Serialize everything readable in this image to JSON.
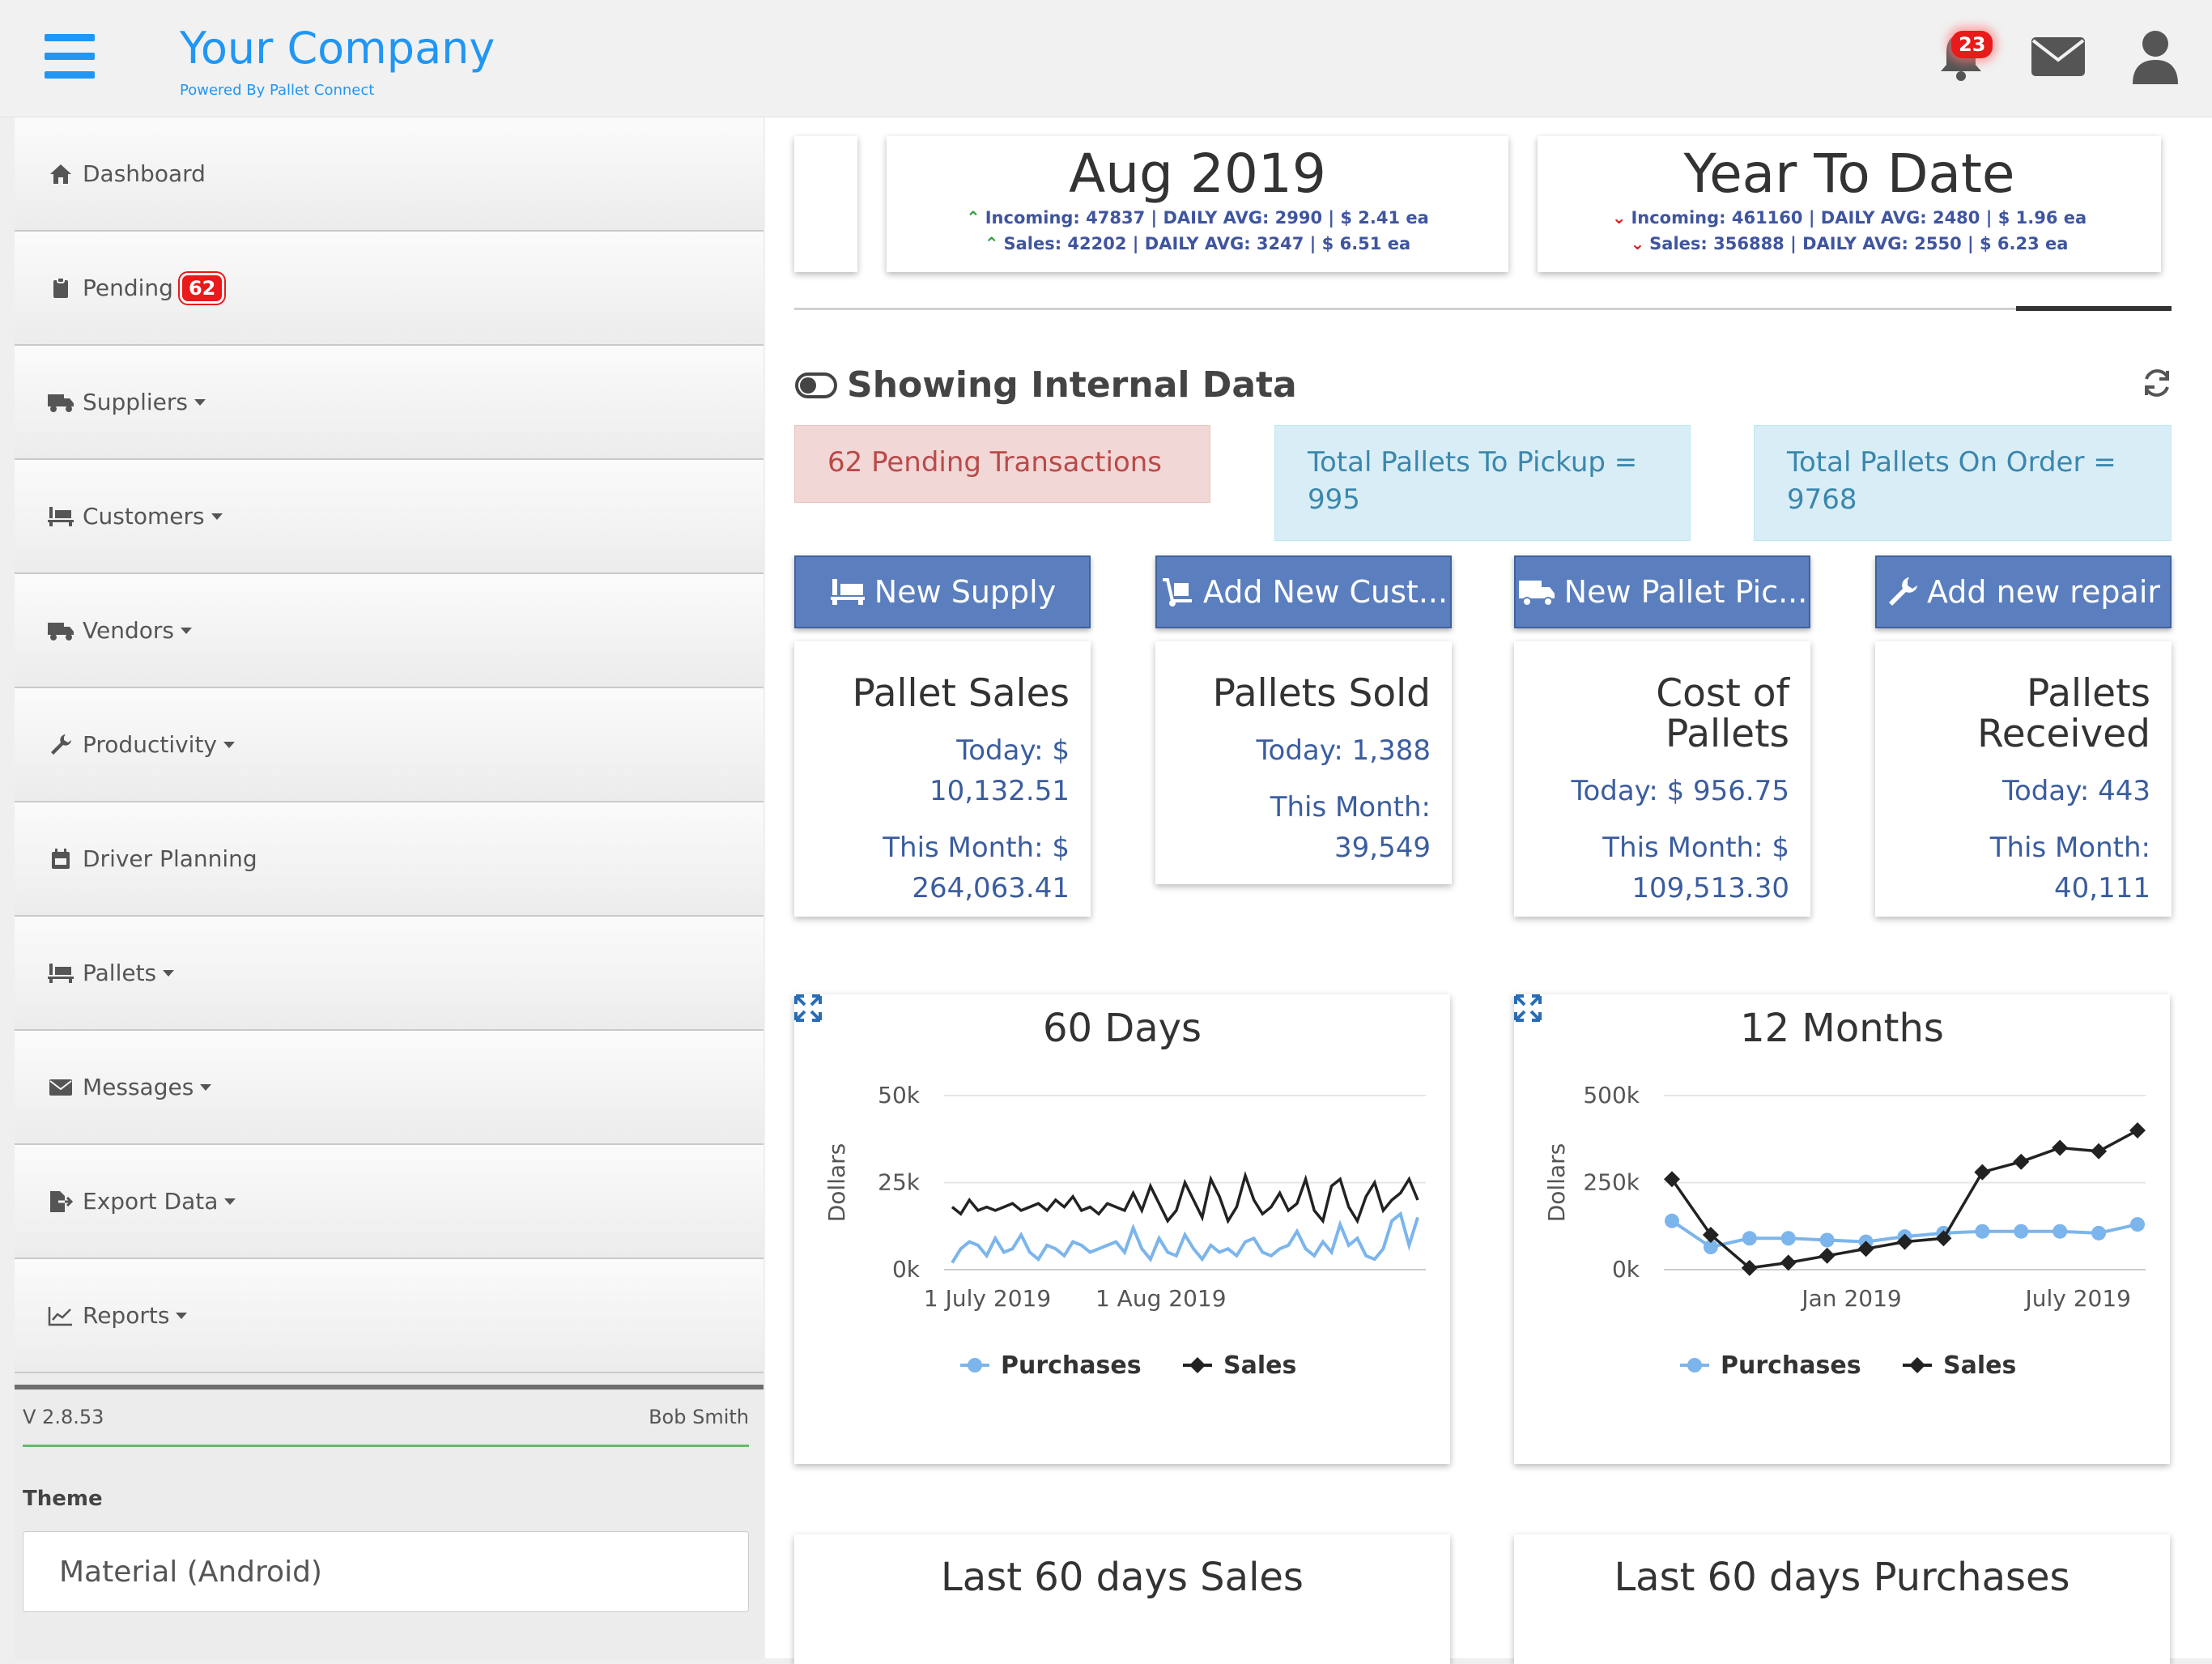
{
  "header": {
    "company": "Your Company",
    "powered_by": "Powered By Pallet Connect",
    "notif_count": "23"
  },
  "sidebar": {
    "items": [
      {
        "label": "Dashboard",
        "icon": "home-icon"
      },
      {
        "label": "Pending",
        "icon": "clipboard-icon",
        "badge": "62"
      },
      {
        "label": "Suppliers",
        "icon": "truck-icon",
        "caret": true
      },
      {
        "label": "Customers",
        "icon": "pallet-icon",
        "caret": true
      },
      {
        "label": "Vendors",
        "icon": "truck-icon",
        "caret": true
      },
      {
        "label": "Productivity",
        "icon": "wrench-icon",
        "caret": true
      },
      {
        "label": "Driver Planning",
        "icon": "calendar-icon"
      },
      {
        "label": "Pallets",
        "icon": "pallet-icon",
        "caret": true
      },
      {
        "label": "Messages",
        "icon": "envelope-icon",
        "caret": true
      },
      {
        "label": "Export Data",
        "icon": "export-icon",
        "caret": true
      },
      {
        "label": "Reports",
        "icon": "chart-icon",
        "caret": true
      }
    ],
    "version": "V 2.8.53",
    "user": "Bob Smith",
    "theme_label": "Theme",
    "theme_value": "Material (Android)"
  },
  "summary": {
    "month": {
      "title": "Aug 2019",
      "incoming": "Incoming: 47837 | DAILY AVG: 2990 | $ 2.41 ea",
      "sales": "Sales: 42202 | DAILY AVG: 3247 | $ 6.51 ea"
    },
    "ytd": {
      "title": "Year To Date",
      "incoming": "Incoming: 461160 | DAILY AVG: 2480 | $ 1.96 ea",
      "sales": "Sales: 356888 | DAILY AVG: 2550 | $ 6.23 ea"
    }
  },
  "showing": "Showing Internal Data",
  "alerts": {
    "pending": "62 Pending Transactions",
    "pickup": "Total Pallets To Pickup = 995",
    "order": "Total Pallets On Order = 9768"
  },
  "buttons": {
    "new_supply": "New Supply",
    "add_customer": "Add New Cust...",
    "new_pickup": "New Pallet Pic...",
    "add_repair": "Add new repair"
  },
  "stats": [
    {
      "title": "Pallet Sales",
      "today": "Today: $ 10,132.51",
      "month": "This Month: $ 264,063.41"
    },
    {
      "title": "Pallets Sold",
      "today": "Today: 1,388",
      "month": "This Month: 39,549"
    },
    {
      "title": "Cost of Pallets",
      "today": "Today: $ 956.75",
      "month": "This Month: $ 109,513.30"
    },
    {
      "title": "Pallets Received",
      "today": "Today: 443",
      "month": "This Month: 40,111"
    }
  ],
  "colors": {
    "purchases": "#7cb5ec",
    "sales": "#222222",
    "accent": "#2196f3",
    "button": "#5b7fbe"
  },
  "chart_data": [
    {
      "type": "line",
      "title": "60 Days",
      "ylabel": "Dollars",
      "xlabel": "",
      "x_ticks": [
        "1 July 2019",
        "1 Aug 2019"
      ],
      "y_ticks": [
        "0k",
        "25k",
        "50k"
      ],
      "ylim": [
        0,
        50000
      ],
      "legend": "bottom",
      "series": [
        {
          "name": "Purchases",
          "values": [
            2000,
            6000,
            8000,
            7000,
            4000,
            9000,
            5000,
            6000,
            10000,
            5000,
            3000,
            7000,
            6000,
            4000,
            8000,
            7000,
            5000,
            6000,
            7000,
            8000,
            5000,
            12000,
            6000,
            3000,
            9000,
            5000,
            4000,
            10000,
            6000,
            3000,
            7000,
            5000,
            6000,
            4000,
            8000,
            9000,
            5000,
            4000,
            6000,
            7000,
            11000,
            6000,
            4000,
            8000,
            5000,
            13000,
            7000,
            9000,
            4000,
            3000,
            6000,
            14000,
            16000,
            7000,
            15000
          ]
        },
        {
          "name": "Sales",
          "values": [
            18000,
            16000,
            20000,
            17000,
            18000,
            17000,
            18000,
            19000,
            17000,
            18000,
            19000,
            17000,
            20000,
            18000,
            21000,
            17000,
            18000,
            16000,
            19000,
            18000,
            17000,
            22000,
            17000,
            24000,
            19000,
            14000,
            17000,
            25000,
            20000,
            15000,
            26000,
            21000,
            14000,
            18000,
            27000,
            20000,
            16000,
            18000,
            22000,
            17000,
            19000,
            26000,
            17000,
            14000,
            24000,
            26000,
            18000,
            14000,
            21000,
            25000,
            17000,
            20000,
            22000,
            26000,
            20000
          ]
        }
      ]
    },
    {
      "type": "line",
      "title": "12 Months",
      "ylabel": "Dollars",
      "xlabel": "",
      "x_ticks": [
        "Jan 2019",
        "July 2019"
      ],
      "y_ticks": [
        "0k",
        "250k",
        "500k"
      ],
      "ylim": [
        0,
        500000
      ],
      "legend": "bottom",
      "series": [
        {
          "name": "Purchases",
          "values": [
            140000,
            65000,
            90000,
            90000,
            85000,
            80000,
            95000,
            105000,
            110000,
            110000,
            110000,
            105000,
            130000
          ]
        },
        {
          "name": "Sales",
          "values": [
            260000,
            100000,
            5000,
            20000,
            40000,
            60000,
            80000,
            90000,
            280000,
            310000,
            350000,
            340000,
            400000
          ]
        }
      ]
    }
  ],
  "bottom": {
    "sales": "Last 60 days Sales",
    "purchases": "Last 60 days Purchases"
  }
}
